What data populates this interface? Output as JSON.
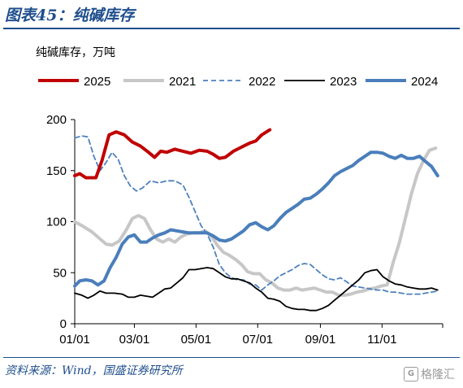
{
  "header": {
    "figure_title": "图表45：纯碱库存"
  },
  "footer": {
    "source": "资料来源：Wind，国盛证券研究所",
    "watermark": "格隆汇"
  },
  "colors": {
    "title_blue": "#1f4e8c"
  },
  "chart_data": {
    "type": "line",
    "unit_label": "纯碱库存，万吨",
    "xlim": [
      1,
      365
    ],
    "ylim": [
      0,
      200
    ],
    "y_ticks": [
      0,
      50,
      100,
      150,
      200
    ],
    "x_ticks": [
      {
        "label": "01/01",
        "day": 1
      },
      {
        "label": "03/01",
        "day": 60
      },
      {
        "label": "05/01",
        "day": 121
      },
      {
        "label": "07/01",
        "day": 182
      },
      {
        "label": "09/01",
        "day": 244
      },
      {
        "label": "11/01",
        "day": 305
      }
    ],
    "legend_position": "top",
    "series": [
      {
        "name": "2025",
        "color": "#c00000",
        "width": 4,
        "dash": "",
        "points": [
          [
            1,
            145
          ],
          [
            6,
            147
          ],
          [
            12,
            143
          ],
          [
            22,
            143
          ],
          [
            28,
            160
          ],
          [
            35,
            185
          ],
          [
            42,
            188
          ],
          [
            50,
            185
          ],
          [
            58,
            178
          ],
          [
            66,
            174
          ],
          [
            74,
            168
          ],
          [
            80,
            163
          ],
          [
            86,
            169
          ],
          [
            92,
            168
          ],
          [
            100,
            171
          ],
          [
            108,
            169
          ],
          [
            116,
            167
          ],
          [
            124,
            170
          ],
          [
            132,
            169
          ],
          [
            138,
            166
          ],
          [
            144,
            162
          ],
          [
            150,
            163
          ],
          [
            158,
            169
          ],
          [
            166,
            173
          ],
          [
            174,
            177
          ],
          [
            180,
            179
          ],
          [
            186,
            185
          ],
          [
            194,
            190
          ]
        ]
      },
      {
        "name": "2021",
        "color": "#c7c7c7",
        "width": 4,
        "dash": "",
        "points": [
          [
            1,
            100
          ],
          [
            10,
            95
          ],
          [
            18,
            90
          ],
          [
            25,
            84
          ],
          [
            32,
            78
          ],
          [
            38,
            77
          ],
          [
            45,
            81
          ],
          [
            52,
            92
          ],
          [
            58,
            103
          ],
          [
            64,
            106
          ],
          [
            70,
            103
          ],
          [
            76,
            92
          ],
          [
            82,
            83
          ],
          [
            88,
            80
          ],
          [
            94,
            83
          ],
          [
            100,
            80
          ],
          [
            106,
            85
          ],
          [
            112,
            88
          ],
          [
            118,
            89
          ],
          [
            124,
            89
          ],
          [
            130,
            91
          ],
          [
            136,
            86
          ],
          [
            142,
            77
          ],
          [
            148,
            70
          ],
          [
            154,
            67
          ],
          [
            160,
            63
          ],
          [
            166,
            58
          ],
          [
            172,
            51
          ],
          [
            178,
            49
          ],
          [
            184,
            49
          ],
          [
            190,
            43
          ],
          [
            196,
            40
          ],
          [
            202,
            35
          ],
          [
            208,
            33
          ],
          [
            214,
            33
          ],
          [
            220,
            35
          ],
          [
            226,
            33
          ],
          [
            232,
            34
          ],
          [
            238,
            35
          ],
          [
            244,
            33
          ],
          [
            250,
            31
          ],
          [
            256,
            31
          ],
          [
            262,
            28
          ],
          [
            268,
            28
          ],
          [
            274,
            29
          ],
          [
            280,
            31
          ],
          [
            286,
            32
          ],
          [
            292,
            34
          ],
          [
            298,
            35
          ],
          [
            304,
            37
          ],
          [
            310,
            38
          ],
          [
            316,
            60
          ],
          [
            322,
            79
          ],
          [
            328,
            103
          ],
          [
            334,
            127
          ],
          [
            340,
            147
          ],
          [
            346,
            160
          ],
          [
            352,
            170
          ],
          [
            358,
            172
          ]
        ]
      },
      {
        "name": "2022",
        "color": "#4f81bd",
        "width": 1.8,
        "dash": "6,4",
        "points": [
          [
            1,
            182
          ],
          [
            8,
            184
          ],
          [
            14,
            183
          ],
          [
            20,
            164
          ],
          [
            26,
            150
          ],
          [
            32,
            158
          ],
          [
            38,
            168
          ],
          [
            44,
            161
          ],
          [
            50,
            145
          ],
          [
            56,
            135
          ],
          [
            62,
            130
          ],
          [
            68,
            133
          ],
          [
            76,
            140
          ],
          [
            84,
            138
          ],
          [
            92,
            140
          ],
          [
            100,
            140
          ],
          [
            108,
            136
          ],
          [
            114,
            124
          ],
          [
            120,
            110
          ],
          [
            126,
            96
          ],
          [
            132,
            88
          ],
          [
            138,
            75
          ],
          [
            144,
            58
          ],
          [
            150,
            50
          ],
          [
            156,
            45
          ],
          [
            162,
            43
          ],
          [
            168,
            43
          ],
          [
            174,
            39
          ],
          [
            180,
            38
          ],
          [
            186,
            33
          ],
          [
            192,
            38
          ],
          [
            198,
            42
          ],
          [
            204,
            47
          ],
          [
            210,
            50
          ],
          [
            216,
            53
          ],
          [
            222,
            57
          ],
          [
            228,
            59
          ],
          [
            234,
            58
          ],
          [
            240,
            53
          ],
          [
            246,
            48
          ],
          [
            252,
            44
          ],
          [
            258,
            43
          ],
          [
            264,
            45
          ],
          [
            270,
            41
          ],
          [
            276,
            37
          ],
          [
            282,
            36
          ],
          [
            288,
            35
          ],
          [
            294,
            34
          ],
          [
            300,
            33
          ],
          [
            306,
            33
          ],
          [
            312,
            31
          ],
          [
            318,
            31
          ],
          [
            324,
            30
          ],
          [
            330,
            29
          ],
          [
            336,
            29
          ],
          [
            342,
            29
          ],
          [
            348,
            30
          ],
          [
            354,
            31
          ],
          [
            360,
            32
          ]
        ]
      },
      {
        "name": "2023",
        "color": "#000000",
        "width": 1.8,
        "dash": "",
        "points": [
          [
            1,
            30
          ],
          [
            8,
            28
          ],
          [
            14,
            25
          ],
          [
            20,
            28
          ],
          [
            26,
            32
          ],
          [
            32,
            30
          ],
          [
            40,
            30
          ],
          [
            48,
            29
          ],
          [
            54,
            26
          ],
          [
            60,
            26
          ],
          [
            66,
            28
          ],
          [
            72,
            27
          ],
          [
            78,
            26
          ],
          [
            84,
            30
          ],
          [
            90,
            34
          ],
          [
            96,
            35
          ],
          [
            102,
            40
          ],
          [
            108,
            45
          ],
          [
            114,
            53
          ],
          [
            120,
            53
          ],
          [
            126,
            54
          ],
          [
            132,
            55
          ],
          [
            138,
            54
          ],
          [
            144,
            50
          ],
          [
            150,
            46
          ],
          [
            156,
            44
          ],
          [
            162,
            44
          ],
          [
            168,
            42
          ],
          [
            174,
            40
          ],
          [
            180,
            35
          ],
          [
            186,
            31
          ],
          [
            192,
            25
          ],
          [
            198,
            24
          ],
          [
            204,
            22
          ],
          [
            210,
            17
          ],
          [
            216,
            15
          ],
          [
            222,
            14
          ],
          [
            228,
            14
          ],
          [
            234,
            13
          ],
          [
            240,
            13
          ],
          [
            246,
            15
          ],
          [
            252,
            18
          ],
          [
            258,
            23
          ],
          [
            264,
            28
          ],
          [
            270,
            33
          ],
          [
            276,
            38
          ],
          [
            282,
            43
          ],
          [
            288,
            50
          ],
          [
            294,
            52
          ],
          [
            300,
            53
          ],
          [
            306,
            46
          ],
          [
            312,
            42
          ],
          [
            318,
            39
          ],
          [
            324,
            38
          ],
          [
            330,
            36
          ],
          [
            336,
            35
          ],
          [
            342,
            34
          ],
          [
            348,
            34
          ],
          [
            354,
            35
          ],
          [
            360,
            33
          ]
        ]
      },
      {
        "name": "2024",
        "color": "#4a7ebb",
        "width": 4,
        "dash": "",
        "points": [
          [
            1,
            37
          ],
          [
            6,
            42
          ],
          [
            12,
            43
          ],
          [
            18,
            42
          ],
          [
            24,
            38
          ],
          [
            30,
            42
          ],
          [
            36,
            55
          ],
          [
            42,
            65
          ],
          [
            48,
            78
          ],
          [
            54,
            85
          ],
          [
            60,
            87
          ],
          [
            66,
            80
          ],
          [
            72,
            80
          ],
          [
            78,
            84
          ],
          [
            84,
            87
          ],
          [
            90,
            89
          ],
          [
            96,
            92
          ],
          [
            102,
            91
          ],
          [
            108,
            90
          ],
          [
            114,
            89
          ],
          [
            120,
            89
          ],
          [
            126,
            89
          ],
          [
            132,
            89
          ],
          [
            138,
            86
          ],
          [
            144,
            82
          ],
          [
            150,
            81
          ],
          [
            156,
            83
          ],
          [
            162,
            87
          ],
          [
            168,
            91
          ],
          [
            174,
            97
          ],
          [
            180,
            99
          ],
          [
            186,
            95
          ],
          [
            192,
            92
          ],
          [
            198,
            96
          ],
          [
            204,
            103
          ],
          [
            210,
            109
          ],
          [
            216,
            113
          ],
          [
            222,
            117
          ],
          [
            228,
            122
          ],
          [
            234,
            123
          ],
          [
            240,
            127
          ],
          [
            246,
            132
          ],
          [
            252,
            138
          ],
          [
            258,
            145
          ],
          [
            264,
            149
          ],
          [
            270,
            152
          ],
          [
            276,
            155
          ],
          [
            282,
            160
          ],
          [
            288,
            164
          ],
          [
            294,
            168
          ],
          [
            300,
            168
          ],
          [
            306,
            167
          ],
          [
            312,
            164
          ],
          [
            318,
            162
          ],
          [
            324,
            165
          ],
          [
            330,
            162
          ],
          [
            336,
            162
          ],
          [
            342,
            164
          ],
          [
            348,
            159
          ],
          [
            354,
            154
          ],
          [
            360,
            145
          ]
        ]
      }
    ]
  }
}
